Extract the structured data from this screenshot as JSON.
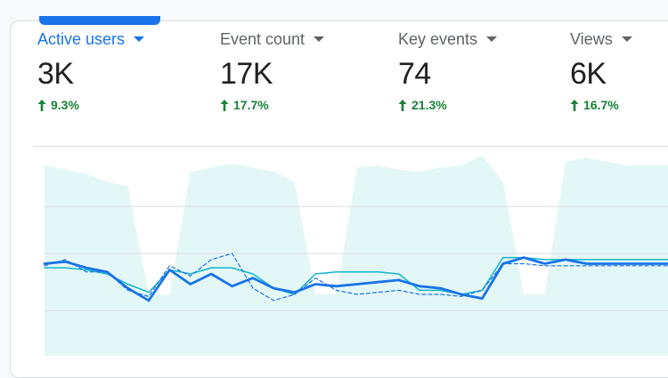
{
  "metrics": [
    {
      "label": "Active users",
      "value": "3K",
      "change": "9.3%",
      "active": true
    },
    {
      "label": "Event count",
      "value": "17K",
      "change": "17.7%",
      "active": false
    },
    {
      "label": "Key events",
      "value": "74",
      "change": "21.3%",
      "active": false
    },
    {
      "label": "Views",
      "value": "6K",
      "change": "16.7%",
      "active": false
    }
  ],
  "colors": {
    "accent": "#1a73e8",
    "positive_change": "#188038",
    "band_fill": "#e4f7f7",
    "line_primary": "#1a73e8",
    "line_secondary": "#12b5cb",
    "line_dashed": "#1a73e8"
  },
  "icons": {
    "dropdown": "caret-down-icon",
    "trend": "arrow-up-icon"
  },
  "chart_data": {
    "type": "area",
    "x": [
      1,
      2,
      3,
      4,
      5,
      6,
      7,
      8,
      9,
      10,
      11,
      12,
      13,
      14,
      15,
      16,
      17,
      18,
      19,
      20,
      21,
      22,
      23,
      24,
      25,
      26,
      27,
      28,
      29,
      30,
      31
    ],
    "ylim": [
      0,
      1
    ],
    "grid": true,
    "series": [
      {
        "role": "range-band",
        "values": [
          0.93,
          0.91,
          0.89,
          0.85,
          0.83,
          0.3,
          0.3,
          0.9,
          0.92,
          0.94,
          0.92,
          0.9,
          0.85,
          0.3,
          0.3,
          0.92,
          0.93,
          0.91,
          0.9,
          0.92,
          0.93,
          0.98,
          0.85,
          0.3,
          0.3,
          0.95,
          0.97,
          0.95,
          0.93,
          0.93,
          0.93
        ]
      },
      {
        "role": "current-period",
        "values": [
          0.45,
          0.46,
          0.43,
          0.41,
          0.33,
          0.27,
          0.42,
          0.35,
          0.4,
          0.34,
          0.38,
          0.33,
          0.31,
          0.35,
          0.34,
          0.35,
          0.36,
          0.37,
          0.34,
          0.33,
          0.3,
          0.28,
          0.45,
          0.48,
          0.45,
          0.47,
          0.45,
          0.45,
          0.45,
          0.45,
          0.45
        ]
      },
      {
        "role": "comparison",
        "values": [
          0.43,
          0.43,
          0.42,
          0.4,
          0.35,
          0.31,
          0.42,
          0.4,
          0.43,
          0.43,
          0.4,
          0.33,
          0.3,
          0.4,
          0.41,
          0.41,
          0.41,
          0.4,
          0.32,
          0.32,
          0.3,
          0.32,
          0.48,
          0.48,
          0.47,
          0.47,
          0.47,
          0.47,
          0.47,
          0.47,
          0.47
        ]
      },
      {
        "role": "previous-period",
        "values": [
          0.44,
          0.47,
          0.41,
          0.41,
          0.32,
          0.29,
          0.44,
          0.39,
          0.47,
          0.5,
          0.33,
          0.27,
          0.3,
          0.38,
          0.32,
          0.3,
          0.31,
          0.32,
          0.3,
          0.3,
          0.29,
          0.32,
          0.45,
          0.45,
          0.44,
          0.44,
          0.44,
          0.44,
          0.44,
          0.44,
          0.44
        ]
      }
    ]
  }
}
